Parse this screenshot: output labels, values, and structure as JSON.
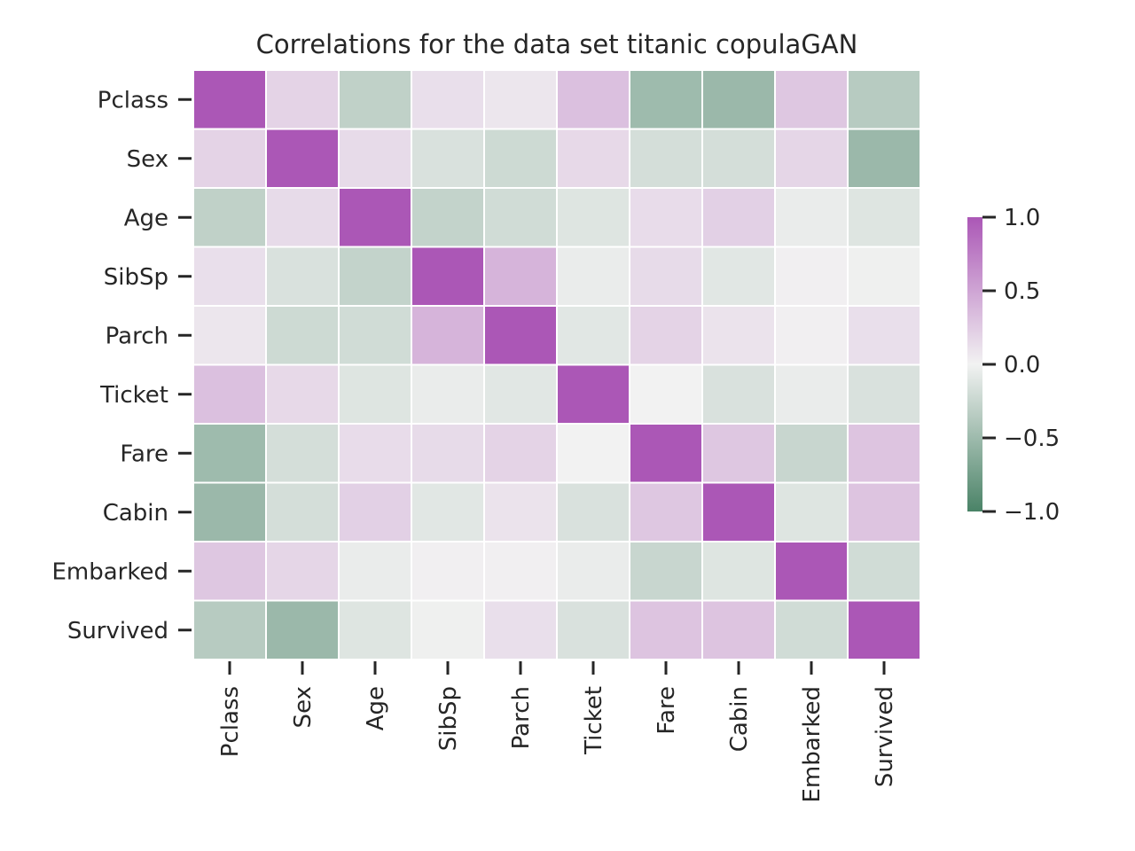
{
  "chart_data": {
    "type": "heatmap",
    "title": "Correlations for the data set titanic copulaGAN",
    "xlabel": "",
    "ylabel": "",
    "row_labels": [
      "Pclass",
      "Sex",
      "Age",
      "SibSp",
      "Parch",
      "Ticket",
      "Fare",
      "Cabin",
      "Embarked",
      "Survived"
    ],
    "col_labels": [
      "Pclass",
      "Sex",
      "Age",
      "SibSp",
      "Parch",
      "Ticket",
      "Fare",
      "Cabin",
      "Embarked",
      "Survived"
    ],
    "values": [
      [
        1.0,
        0.2,
        -0.3,
        0.12,
        0.08,
        0.32,
        -0.5,
        -0.52,
        0.28,
        -0.35
      ],
      [
        0.2,
        1.0,
        0.15,
        -0.15,
        -0.22,
        0.16,
        -0.18,
        -0.18,
        0.18,
        -0.52
      ],
      [
        -0.3,
        0.15,
        1.0,
        -0.28,
        -0.2,
        -0.12,
        0.14,
        0.22,
        -0.05,
        -0.12
      ],
      [
        0.12,
        -0.15,
        -0.28,
        1.0,
        0.4,
        -0.05,
        0.15,
        -0.1,
        0.02,
        -0.02
      ],
      [
        0.08,
        -0.22,
        -0.2,
        0.4,
        1.0,
        -0.1,
        0.2,
        0.1,
        0.02,
        0.12
      ],
      [
        0.32,
        0.16,
        -0.12,
        -0.05,
        -0.1,
        1.0,
        0.0,
        -0.15,
        -0.05,
        -0.15
      ],
      [
        -0.5,
        -0.18,
        0.14,
        0.15,
        0.2,
        0.0,
        1.0,
        0.28,
        -0.25,
        0.3
      ],
      [
        -0.52,
        -0.18,
        0.22,
        -0.1,
        0.1,
        -0.15,
        0.28,
        1.0,
        -0.12,
        0.3
      ],
      [
        0.28,
        0.18,
        -0.05,
        0.02,
        0.02,
        -0.05,
        -0.25,
        -0.12,
        1.0,
        -0.2
      ],
      [
        -0.35,
        -0.52,
        -0.12,
        -0.02,
        0.12,
        -0.15,
        0.3,
        0.3,
        -0.2,
        1.0
      ]
    ],
    "vmin": -1.0,
    "vmax": 1.0,
    "colormap": {
      "negative": "#4a8367",
      "center": "#f2f2f2",
      "positive": "#ab57b6"
    },
    "colorbar_ticks": [
      1.0,
      0.5,
      0.0,
      -0.5,
      -1.0
    ],
    "colorbar_tick_labels": [
      "1.0",
      "0.5",
      "0.0",
      "−0.5",
      "−1.0"
    ],
    "grid": false,
    "legend": "right"
  }
}
